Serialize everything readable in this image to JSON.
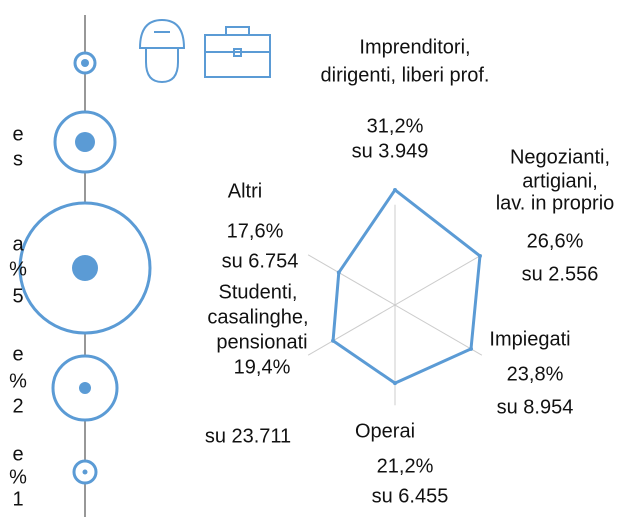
{
  "chart_data": {
    "type": "radar",
    "categories": [
      [
        "Imprenditori,",
        "dirigenti, liberi prof."
      ],
      [
        "Negozianti,",
        "artigiani,",
        "lav. in proprio"
      ],
      [
        "Impiegati"
      ],
      [
        "Operai"
      ],
      [
        "Studenti,",
        "casalinghe,",
        "pensionati"
      ],
      [
        "Altri"
      ]
    ],
    "values": [
      31.2,
      26.6,
      23.8,
      21.2,
      19.4,
      17.6
    ],
    "value_labels": [
      "31,2%",
      "26,6%",
      "23,8%",
      "21,2%",
      "19,4%",
      "17,6%"
    ],
    "sample_labels": [
      "su 3.949",
      "su 2.556",
      "su 8.954",
      "su 6.455",
      "su 23.711",
      "su 6.754"
    ],
    "rlim": [
      0,
      32
    ],
    "color": "#5b9bd5",
    "left_fragments": [
      "e",
      "s",
      "a",
      "%",
      "5",
      "e",
      "%",
      "2",
      "e",
      "%",
      "1"
    ]
  }
}
